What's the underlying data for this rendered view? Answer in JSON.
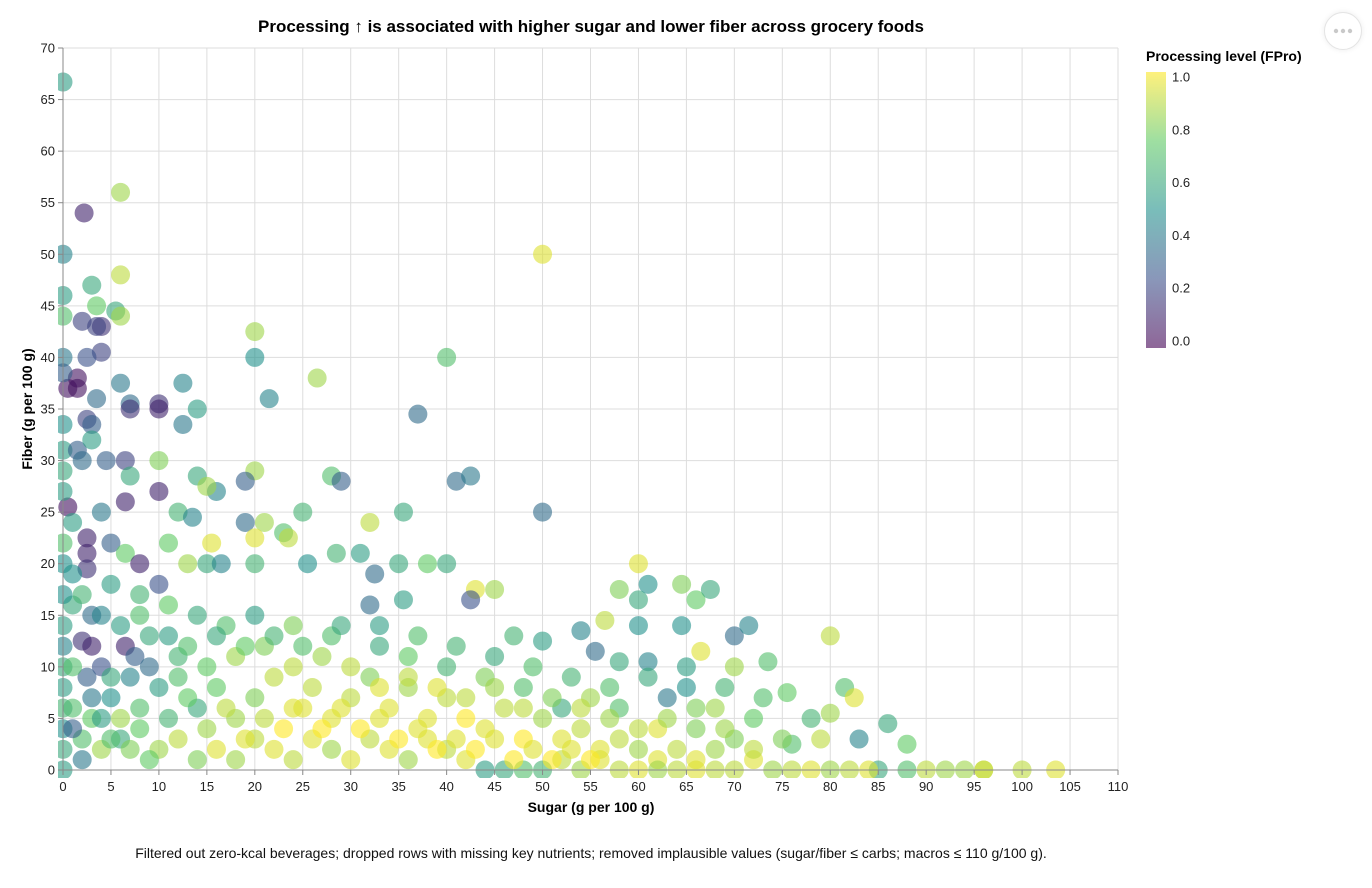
{
  "chart_data": {
    "type": "scatter",
    "title": "Processing ↑ is associated with higher sugar and lower fiber across grocery foods",
    "xlabel": "Sugar (g per 100 g)",
    "ylabel": "Fiber (g per 100 g)",
    "xlim": [
      0,
      110
    ],
    "ylim": [
      0,
      70
    ],
    "x_ticks": [
      "0",
      "5",
      "10",
      "15",
      "20",
      "25",
      "30",
      "35",
      "40",
      "45",
      "50",
      "55",
      "60",
      "65",
      "70",
      "75",
      "80",
      "85",
      "90",
      "95",
      "100",
      "105",
      "110"
    ],
    "y_ticks": [
      "0",
      "5",
      "10",
      "15",
      "20",
      "25",
      "30",
      "35",
      "40",
      "45",
      "50",
      "55",
      "60",
      "65",
      "70"
    ],
    "grid": true,
    "legend": {
      "title": "Processing level (FPro)",
      "placement": "top-right",
      "type": "gradient",
      "labels": [
        "1.0",
        "0.8",
        "0.6",
        "0.4",
        "0.2",
        "0.0"
      ],
      "domain": [
        0,
        1
      ],
      "colors": [
        "#440154",
        "#3b528b",
        "#21918c",
        "#5ec962",
        "#fde725"
      ]
    },
    "point_opacity": 0.6,
    "points": [
      [
        0,
        66.7,
        0.55
      ],
      [
        2.2,
        54,
        0.1
      ],
      [
        6,
        56,
        0.85
      ],
      [
        50,
        50,
        0.95
      ],
      [
        0,
        50,
        0.45
      ],
      [
        0,
        46,
        0.55
      ],
      [
        3,
        47,
        0.6
      ],
      [
        6,
        48,
        0.9
      ],
      [
        0,
        44,
        0.7
      ],
      [
        2,
        43.5,
        0.2
      ],
      [
        3.5,
        45,
        0.75
      ],
      [
        5.5,
        44.5,
        0.6
      ],
      [
        6,
        44,
        0.85
      ],
      [
        4,
        43,
        0.15
      ],
      [
        3.5,
        43,
        0.2
      ],
      [
        4,
        40.5,
        0.2
      ],
      [
        2.5,
        40,
        0.25
      ],
      [
        0,
        40,
        0.4
      ],
      [
        20,
        42.5,
        0.85
      ],
      [
        20,
        40,
        0.5
      ],
      [
        40,
        40,
        0.7
      ],
      [
        0.5,
        37,
        0.05
      ],
      [
        1.5,
        38,
        0.05
      ],
      [
        1.5,
        37,
        0.05
      ],
      [
        0,
        38.5,
        0.3
      ],
      [
        3.5,
        36,
        0.35
      ],
      [
        6,
        37.5,
        0.4
      ],
      [
        7,
        35.5,
        0.35
      ],
      [
        7,
        35,
        0.15
      ],
      [
        10,
        35.5,
        0.15
      ],
      [
        10,
        35,
        0.1
      ],
      [
        12.5,
        37.5,
        0.45
      ],
      [
        14,
        35,
        0.55
      ],
      [
        21.5,
        36,
        0.45
      ],
      [
        26.5,
        38,
        0.85
      ],
      [
        37,
        34.5,
        0.35
      ],
      [
        12.5,
        33.5,
        0.4
      ],
      [
        2.5,
        34,
        0.2
      ],
      [
        3,
        33.5,
        0.3
      ],
      [
        0,
        33.5,
        0.5
      ],
      [
        0,
        31,
        0.55
      ],
      [
        1.5,
        31,
        0.3
      ],
      [
        3,
        32,
        0.55
      ],
      [
        10,
        30,
        0.8
      ],
      [
        6.5,
        30,
        0.2
      ],
      [
        4.5,
        30,
        0.3
      ],
      [
        2,
        30,
        0.35
      ],
      [
        0,
        29,
        0.6
      ],
      [
        7,
        28.5,
        0.6
      ],
      [
        14,
        28.5,
        0.6
      ],
      [
        20,
        29,
        0.85
      ],
      [
        28,
        28.5,
        0.7
      ],
      [
        29,
        28,
        0.3
      ],
      [
        19,
        28,
        0.3
      ],
      [
        16,
        27,
        0.45
      ],
      [
        15,
        27.5,
        0.85
      ],
      [
        10,
        27,
        0.1
      ],
      [
        6.5,
        26,
        0.1
      ],
      [
        0.5,
        25.5,
        0.05
      ],
      [
        0,
        27,
        0.55
      ],
      [
        4,
        25,
        0.4
      ],
      [
        12,
        25,
        0.65
      ],
      [
        13.5,
        24.5,
        0.45
      ],
      [
        19,
        24,
        0.35
      ],
      [
        21,
        24,
        0.85
      ],
      [
        25,
        25,
        0.65
      ],
      [
        32,
        24,
        0.9
      ],
      [
        35.5,
        25,
        0.6
      ],
      [
        41,
        28,
        0.35
      ],
      [
        42.5,
        28.5,
        0.4
      ],
      [
        50,
        25,
        0.35
      ],
      [
        23,
        23,
        0.7
      ],
      [
        0,
        22,
        0.7
      ],
      [
        2.5,
        22.5,
        0.1
      ],
      [
        2.5,
        21,
        0.1
      ],
      [
        5,
        22,
        0.3
      ],
      [
        6.5,
        21,
        0.75
      ],
      [
        11,
        22,
        0.75
      ],
      [
        13,
        20,
        0.85
      ],
      [
        15.5,
        22,
        0.95
      ],
      [
        20,
        22.5,
        0.95
      ],
      [
        23.5,
        22.5,
        0.9
      ],
      [
        0,
        20,
        0.5
      ],
      [
        2.5,
        19.5,
        0.15
      ],
      [
        8,
        20,
        0.1
      ],
      [
        10,
        18,
        0.25
      ],
      [
        15,
        20,
        0.6
      ],
      [
        16.5,
        20,
        0.45
      ],
      [
        20,
        20,
        0.65
      ],
      [
        25.5,
        20,
        0.5
      ],
      [
        28.5,
        21,
        0.65
      ],
      [
        31,
        21,
        0.55
      ],
      [
        32.5,
        19,
        0.35
      ],
      [
        35,
        20,
        0.6
      ],
      [
        38,
        20,
        0.75
      ],
      [
        40,
        20,
        0.6
      ],
      [
        60,
        20,
        0.95
      ],
      [
        58,
        17.5,
        0.8
      ],
      [
        60,
        16.5,
        0.6
      ],
      [
        61,
        18,
        0.5
      ],
      [
        64.5,
        18,
        0.8
      ],
      [
        66,
        16.5,
        0.75
      ],
      [
        67.5,
        17.5,
        0.6
      ],
      [
        43,
        17.5,
        0.95
      ],
      [
        45,
        17.5,
        0.85
      ],
      [
        42.5,
        16.5,
        0.25
      ],
      [
        32,
        16,
        0.35
      ],
      [
        35.5,
        16.5,
        0.55
      ],
      [
        60,
        14,
        0.5
      ],
      [
        56.5,
        14.5,
        0.9
      ],
      [
        64.5,
        14,
        0.5
      ],
      [
        70,
        13,
        0.35
      ],
      [
        71.5,
        14,
        0.45
      ],
      [
        80,
        13,
        0.9
      ],
      [
        54,
        13.5,
        0.45
      ],
      [
        50,
        12.5,
        0.55
      ],
      [
        47,
        13,
        0.65
      ],
      [
        55.5,
        11.5,
        0.35
      ],
      [
        58,
        10.5,
        0.6
      ],
      [
        61,
        10.5,
        0.45
      ],
      [
        66.5,
        11.5,
        0.95
      ],
      [
        70,
        10,
        0.85
      ],
      [
        73.5,
        10.5,
        0.7
      ],
      [
        75.5,
        7.5,
        0.75
      ],
      [
        81.5,
        8,
        0.7
      ],
      [
        82.5,
        7,
        0.95
      ],
      [
        86,
        4.5,
        0.6
      ],
      [
        88,
        2.5,
        0.75
      ],
      [
        83,
        3,
        0.45
      ],
      [
        79,
        3,
        0.9
      ],
      [
        85,
        0,
        0.6
      ],
      [
        88,
        0,
        0.7
      ],
      [
        90,
        0,
        0.9
      ],
      [
        94,
        0,
        0.85
      ],
      [
        96,
        0,
        0.95
      ],
      [
        100,
        0,
        0.9
      ],
      [
        103.5,
        0,
        0.95
      ],
      [
        78,
        5,
        0.65
      ],
      [
        80,
        5.5,
        0.85
      ],
      [
        76,
        2.5,
        0.7
      ],
      [
        70,
        3,
        0.8
      ],
      [
        72,
        5,
        0.75
      ],
      [
        68,
        6,
        0.85
      ],
      [
        65,
        8,
        0.5
      ],
      [
        63,
        7,
        0.4
      ],
      [
        66,
        4,
        0.8
      ],
      [
        62,
        4,
        0.95
      ],
      [
        58,
        6,
        0.7
      ],
      [
        55,
        7,
        0.85
      ],
      [
        52,
        6,
        0.6
      ],
      [
        48,
        8,
        0.7
      ],
      [
        44,
        9,
        0.8
      ],
      [
        40,
        10,
        0.65
      ],
      [
        36,
        11,
        0.75
      ],
      [
        33,
        12,
        0.6
      ],
      [
        28,
        13,
        0.7
      ],
      [
        24,
        14,
        0.8
      ],
      [
        20,
        15,
        0.55
      ],
      [
        17,
        14,
        0.7
      ],
      [
        14,
        15,
        0.6
      ],
      [
        11,
        16,
        0.75
      ],
      [
        8,
        17,
        0.65
      ],
      [
        5,
        18,
        0.55
      ],
      [
        3,
        15,
        0.35
      ],
      [
        1,
        16,
        0.6
      ],
      [
        2,
        12.5,
        0.15
      ],
      [
        3,
        12,
        0.1
      ],
      [
        6.5,
        12,
        0.1
      ],
      [
        7.5,
        11,
        0.3
      ],
      [
        9,
        10,
        0.35
      ],
      [
        4,
        10,
        0.25
      ],
      [
        0,
        12,
        0.45
      ],
      [
        0,
        8,
        0.55
      ],
      [
        1,
        6,
        0.7
      ],
      [
        2.5,
        9,
        0.3
      ],
      [
        5,
        7,
        0.5
      ],
      [
        7,
        9,
        0.45
      ],
      [
        10,
        8,
        0.55
      ],
      [
        12,
        9,
        0.7
      ],
      [
        14,
        6,
        0.6
      ],
      [
        16,
        8,
        0.75
      ],
      [
        18,
        5,
        0.85
      ],
      [
        20,
        7,
        0.8
      ],
      [
        22,
        9,
        0.9
      ],
      [
        24,
        6,
        0.95
      ],
      [
        26,
        8,
        0.9
      ],
      [
        28,
        5,
        0.95
      ],
      [
        30,
        7,
        0.9
      ],
      [
        32,
        9,
        0.8
      ],
      [
        34,
        6,
        0.95
      ],
      [
        36,
        8,
        0.85
      ],
      [
        38,
        5,
        0.95
      ],
      [
        40,
        7,
        0.9
      ],
      [
        42,
        5,
        1.0
      ],
      [
        44,
        4,
        0.95
      ],
      [
        46,
        6,
        0.9
      ],
      [
        48,
        3,
        1.0
      ],
      [
        50,
        5,
        0.85
      ],
      [
        52,
        3,
        0.95
      ],
      [
        54,
        4,
        0.9
      ],
      [
        56,
        2,
        0.95
      ],
      [
        58,
        3,
        0.9
      ],
      [
        60,
        2,
        0.85
      ],
      [
        62,
        1,
        0.95
      ],
      [
        64,
        2,
        0.9
      ],
      [
        66,
        1,
        0.95
      ],
      [
        68,
        2,
        0.85
      ],
      [
        70,
        0,
        0.9
      ],
      [
        72,
        1,
        0.95
      ],
      [
        74,
        0,
        0.85
      ],
      [
        0,
        4,
        0.5
      ],
      [
        0,
        2,
        0.6
      ],
      [
        0,
        0,
        0.55
      ],
      [
        2,
        3,
        0.7
      ],
      [
        4,
        2,
        0.85
      ],
      [
        6,
        3,
        0.6
      ],
      [
        8,
        4,
        0.75
      ],
      [
        10,
        2,
        0.85
      ],
      [
        12,
        3,
        0.9
      ],
      [
        14,
        1,
        0.8
      ],
      [
        16,
        2,
        0.95
      ],
      [
        18,
        1,
        0.85
      ],
      [
        20,
        3,
        0.9
      ],
      [
        22,
        2,
        0.95
      ],
      [
        24,
        1,
        0.9
      ],
      [
        26,
        3,
        0.95
      ],
      [
        28,
        2,
        0.85
      ],
      [
        30,
        1,
        0.95
      ],
      [
        32,
        3,
        0.9
      ],
      [
        34,
        2,
        0.95
      ],
      [
        36,
        1,
        0.85
      ],
      [
        38,
        3,
        0.95
      ],
      [
        40,
        2,
        0.9
      ],
      [
        42,
        1,
        0.95
      ],
      [
        44,
        0,
        0.55
      ],
      [
        46,
        0,
        0.6
      ],
      [
        48,
        0,
        0.7
      ],
      [
        50,
        0,
        0.65
      ],
      [
        52,
        1,
        0.9
      ],
      [
        54,
        0,
        0.85
      ],
      [
        56,
        1,
        0.95
      ],
      [
        58,
        0,
        0.9
      ],
      [
        60,
        0,
        0.95
      ],
      [
        62,
        0,
        0.85
      ],
      [
        64,
        0,
        0.9
      ],
      [
        66,
        0,
        0.95
      ],
      [
        68,
        0,
        0.9
      ],
      [
        76,
        0,
        0.9
      ],
      [
        78,
        0,
        0.95
      ],
      [
        80,
        0,
        0.85
      ],
      [
        82,
        0,
        0.9
      ],
      [
        84,
        0,
        0.95
      ],
      [
        92,
        0,
        0.85
      ],
      [
        96,
        0,
        0.9
      ],
      [
        2,
        1,
        0.4
      ],
      [
        1,
        4,
        0.3
      ],
      [
        0,
        6,
        0.65
      ],
      [
        3,
        5,
        0.75
      ],
      [
        5,
        9,
        0.6
      ],
      [
        6,
        5,
        0.85
      ],
      [
        8,
        6,
        0.7
      ],
      [
        9,
        13,
        0.6
      ],
      [
        12,
        11,
        0.65
      ],
      [
        15,
        10,
        0.75
      ],
      [
        18,
        11,
        0.85
      ],
      [
        21,
        12,
        0.8
      ],
      [
        24,
        10,
        0.9
      ],
      [
        27,
        11,
        0.85
      ],
      [
        30,
        10,
        0.9
      ],
      [
        33,
        8,
        0.95
      ],
      [
        36,
        9,
        0.9
      ],
      [
        39,
        8,
        0.95
      ],
      [
        42,
        7,
        0.9
      ],
      [
        45,
        8,
        0.85
      ],
      [
        48,
        6,
        0.9
      ],
      [
        51,
        7,
        0.8
      ],
      [
        54,
        6,
        0.9
      ],
      [
        57,
        5,
        0.85
      ],
      [
        60,
        4,
        0.9
      ],
      [
        63,
        5,
        0.85
      ],
      [
        66,
        6,
        0.8
      ],
      [
        69,
        4,
        0.85
      ],
      [
        72,
        2,
        0.9
      ],
      [
        75,
        3,
        0.8
      ],
      [
        1,
        24,
        0.55
      ],
      [
        1,
        19,
        0.5
      ],
      [
        2,
        17,
        0.65
      ],
      [
        4,
        15,
        0.45
      ],
      [
        6,
        14,
        0.55
      ],
      [
        8,
        15,
        0.7
      ],
      [
        11,
        13,
        0.55
      ],
      [
        13,
        12,
        0.7
      ],
      [
        16,
        13,
        0.6
      ],
      [
        19,
        12,
        0.75
      ],
      [
        22,
        13,
        0.65
      ],
      [
        25,
        12,
        0.7
      ],
      [
        29,
        14,
        0.6
      ],
      [
        33,
        14,
        0.55
      ],
      [
        37,
        13,
        0.7
      ],
      [
        41,
        12,
        0.65
      ],
      [
        45,
        11,
        0.6
      ],
      [
        49,
        10,
        0.7
      ],
      [
        53,
        9,
        0.65
      ],
      [
        57,
        8,
        0.7
      ],
      [
        61,
        9,
        0.6
      ],
      [
        65,
        10,
        0.55
      ],
      [
        69,
        8,
        0.65
      ],
      [
        73,
        7,
        0.7
      ],
      [
        0,
        14,
        0.55
      ],
      [
        0,
        17,
        0.5
      ],
      [
        0,
        10,
        0.6
      ],
      [
        1,
        10,
        0.7
      ],
      [
        3,
        7,
        0.4
      ],
      [
        4,
        5,
        0.55
      ],
      [
        5,
        3,
        0.7
      ],
      [
        7,
        2,
        0.8
      ],
      [
        9,
        1,
        0.75
      ],
      [
        11,
        5,
        0.65
      ],
      [
        13,
        7,
        0.75
      ],
      [
        15,
        4,
        0.85
      ],
      [
        17,
        6,
        0.9
      ],
      [
        19,
        3,
        0.95
      ],
      [
        21,
        5,
        0.9
      ],
      [
        23,
        4,
        1.0
      ],
      [
        25,
        6,
        0.95
      ],
      [
        27,
        4,
        1.0
      ],
      [
        29,
        6,
        0.95
      ],
      [
        31,
        4,
        1.0
      ],
      [
        33,
        5,
        0.95
      ],
      [
        35,
        3,
        1.0
      ],
      [
        37,
        4,
        0.95
      ],
      [
        39,
        2,
        1.0
      ],
      [
        41,
        3,
        0.95
      ],
      [
        43,
        2,
        1.0
      ],
      [
        45,
        3,
        0.95
      ],
      [
        47,
        1,
        1.0
      ],
      [
        49,
        2,
        0.95
      ],
      [
        51,
        1,
        1.0
      ],
      [
        53,
        2,
        0.95
      ],
      [
        55,
        1,
        1.0
      ]
    ]
  },
  "caption": "Filtered out zero-kcal beverages; dropped rows with missing key nutrients; removed implausible values (sugar/fiber ≤ carbs; macros ≤ 110 g/100 g).",
  "menu": {
    "icon": "more-horizontal-icon"
  }
}
